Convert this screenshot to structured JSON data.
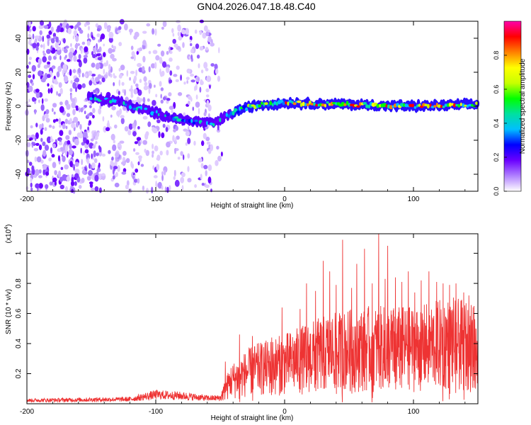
{
  "title": "GN04.2026.047.18.48.C40",
  "chart_data": [
    {
      "type": "heatmap",
      "name": "spectrogram",
      "xlabel": "Height of straight line (km)",
      "ylabel": "Frequency (Hz)",
      "xlim": [
        -200,
        150
      ],
      "ylim": [
        -50,
        50
      ],
      "xticks": [
        -200,
        -100,
        0,
        100
      ],
      "yticks": [
        -40,
        -20,
        0,
        20,
        40
      ],
      "ridge": [
        {
          "x": -150,
          "y": 5
        },
        {
          "x": -130,
          "y": 3
        },
        {
          "x": -115,
          "y": -1
        },
        {
          "x": -100,
          "y": -4
        },
        {
          "x": -85,
          "y": -7
        },
        {
          "x": -70,
          "y": -9
        },
        {
          "x": -55,
          "y": -10
        },
        {
          "x": -45,
          "y": -6
        },
        {
          "x": -35,
          "y": -2
        },
        {
          "x": -20,
          "y": 1
        },
        {
          "x": 0,
          "y": 2
        },
        {
          "x": 50,
          "y": 1
        },
        {
          "x": 100,
          "y": 0
        },
        {
          "x": 150,
          "y": 1
        }
      ],
      "colorbar": {
        "label": "Normalized spectral amplitude",
        "range": [
          0,
          1
        ],
        "ticks": [
          0.0,
          0.2,
          0.4,
          0.6,
          0.8
        ],
        "tick_labels": [
          "0.0",
          "0.2",
          "0.4",
          "0.6",
          "0.8"
        ],
        "colors": [
          "#ffffff",
          "#b080ff",
          "#6a00ff",
          "#0000ff",
          "#00bfff",
          "#00e0a0",
          "#00ff00",
          "#c8ff00",
          "#ffff00",
          "#ff8000",
          "#ff0000",
          "#ff00aa"
        ]
      }
    },
    {
      "type": "line",
      "name": "snr",
      "xlabel": "Height of straight line (km)",
      "ylabel": "SNR (10 * v/v)",
      "y_scale_label": "(x10",
      "y_scale_exp": "4",
      "xlim": [
        -200,
        150
      ],
      "ylim": [
        0,
        1.13
      ],
      "xticks": [
        -200,
        -100,
        0,
        100
      ],
      "yticks": [
        0.2,
        0.4,
        0.6,
        0.8,
        1
      ],
      "ytick_labels": [
        "0.2",
        "0.4",
        "0.6",
        "0.8",
        "1"
      ],
      "color": "#ee3333",
      "envelope": [
        {
          "x": -200,
          "y": 0.03
        },
        {
          "x": -120,
          "y": 0.04
        },
        {
          "x": -100,
          "y": 0.08
        },
        {
          "x": -80,
          "y": 0.07
        },
        {
          "x": -60,
          "y": 0.05
        },
        {
          "x": -50,
          "y": 0.05
        },
        {
          "x": -42,
          "y": 0.2
        },
        {
          "x": -25,
          "y": 0.3
        },
        {
          "x": 0,
          "y": 0.36
        },
        {
          "x": 30,
          "y": 0.45
        },
        {
          "x": 60,
          "y": 0.5
        },
        {
          "x": 100,
          "y": 0.5
        },
        {
          "x": 130,
          "y": 0.55
        },
        {
          "x": 150,
          "y": 0.5
        }
      ],
      "peaks": [
        {
          "x": -46,
          "y": 0.28
        },
        {
          "x": -35,
          "y": 0.46
        },
        {
          "x": -25,
          "y": 0.45
        },
        {
          "x": -10,
          "y": 0.44
        },
        {
          "x": -2,
          "y": 0.64
        },
        {
          "x": 12,
          "y": 0.63
        },
        {
          "x": 17,
          "y": 0.8
        },
        {
          "x": 24,
          "y": 0.75
        },
        {
          "x": 30,
          "y": 0.95
        },
        {
          "x": 35,
          "y": 0.88
        },
        {
          "x": 40,
          "y": 0.79
        },
        {
          "x": 45,
          "y": 1.09
        },
        {
          "x": 52,
          "y": 0.77
        },
        {
          "x": 56,
          "y": 0.93
        },
        {
          "x": 62,
          "y": 1.03
        },
        {
          "x": 68,
          "y": 0.8
        },
        {
          "x": 73,
          "y": 1.13
        },
        {
          "x": 78,
          "y": 0.83
        },
        {
          "x": 80,
          "y": 1.05
        },
        {
          "x": 86,
          "y": 0.84
        },
        {
          "x": 91,
          "y": 0.81
        },
        {
          "x": 96,
          "y": 0.88
        },
        {
          "x": 101,
          "y": 0.74
        },
        {
          "x": 106,
          "y": 0.82
        },
        {
          "x": 112,
          "y": 0.88
        },
        {
          "x": 118,
          "y": 0.81
        },
        {
          "x": 123,
          "y": 0.8
        },
        {
          "x": 128,
          "y": 0.79
        },
        {
          "x": 133,
          "y": 0.8
        },
        {
          "x": 139,
          "y": 0.74
        },
        {
          "x": 143,
          "y": 0.72
        },
        {
          "x": 147,
          "y": 0.65
        }
      ]
    }
  ]
}
